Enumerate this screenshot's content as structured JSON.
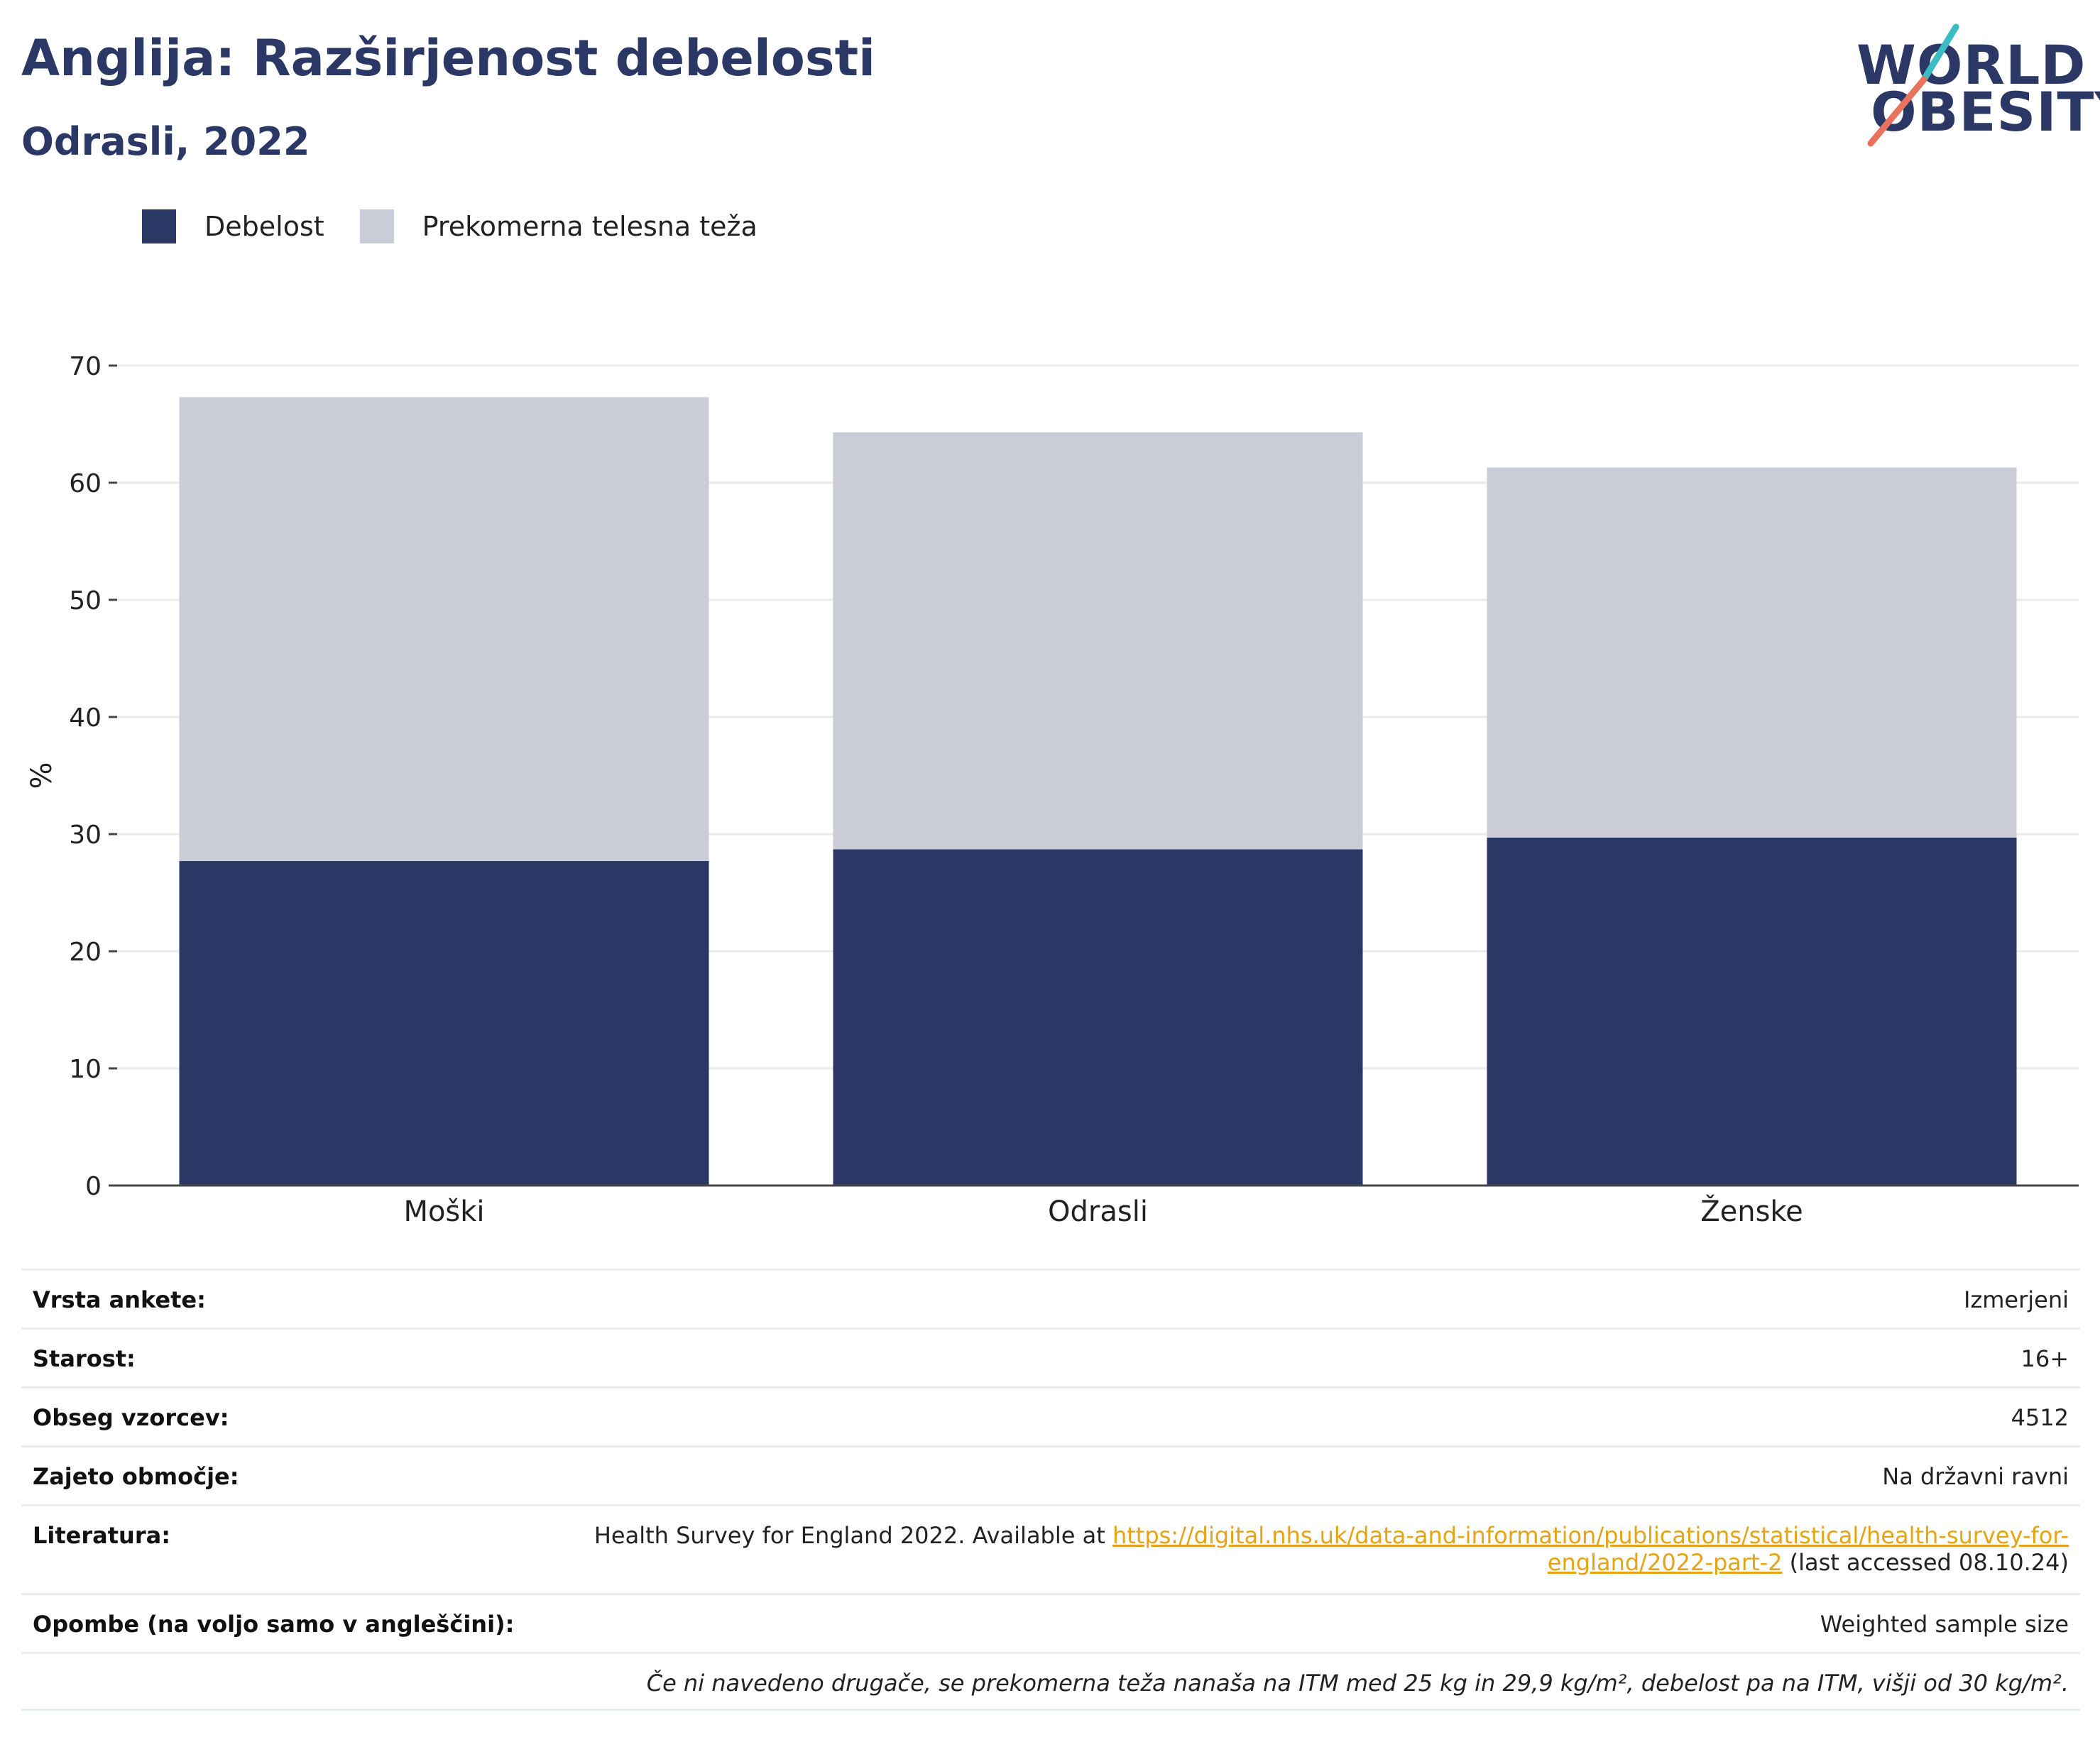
{
  "title": "Anglija: Razširjenost debelosti",
  "subtitle": "Odrasli, 2022",
  "logo": {
    "line1": "WORLD",
    "line2": "OBESITY",
    "colors": {
      "text": "#2b3765",
      "slash_top": "#3bbcc3",
      "slash_bottom": "#e8725c"
    }
  },
  "legend": [
    {
      "label": "Debelost",
      "color": "#2b3765"
    },
    {
      "label": "Prekomerna telesna teža",
      "color": "#cacdd8"
    }
  ],
  "chart_data": {
    "type": "bar",
    "stacked": true,
    "categories": [
      "Moški",
      "Odrasli",
      "Ženske"
    ],
    "series": [
      {
        "name": "Debelost",
        "values": [
          27.7,
          28.7,
          29.7
        ],
        "color": "#2b3765"
      },
      {
        "name": "Prekomerna telesna teža",
        "values": [
          39.6,
          35.6,
          31.6
        ],
        "color": "#cacdd8"
      }
    ],
    "ylabel": "%",
    "ylim": [
      0,
      70
    ],
    "yticks": [
      0,
      10,
      20,
      30,
      40,
      50,
      60,
      70
    ],
    "grid": true,
    "legend_position": "top-left"
  },
  "info": {
    "survey_type": {
      "label": "Vrsta ankete:",
      "value": "Izmerjeni"
    },
    "age": {
      "label": "Starost:",
      "value": "16+"
    },
    "sample_size": {
      "label": "Obseg vzorcev:",
      "value": "4512"
    },
    "area": {
      "label": "Zajeto območje:",
      "value": "Na državni ravni"
    },
    "literature": {
      "label": "Literatura:",
      "text_before": "Health Survey for England 2022. Available at ",
      "link_line1": "https://digital.nhs.uk/data-and-information/publications/statistical/health-survey-for-",
      "link_line2": "england/2022-part-2",
      "text_after": " (last accessed 08.10.24)"
    },
    "notes": {
      "label": "Opombe (na voljo samo v angleščini):",
      "value": "Weighted sample size"
    },
    "footnote": "Če ni navedeno drugače, se prekomerna teža nanaša na ITM med 25 kg in 29,9 kg/m², debelost pa na ITM, višji od 30 kg/m²."
  }
}
